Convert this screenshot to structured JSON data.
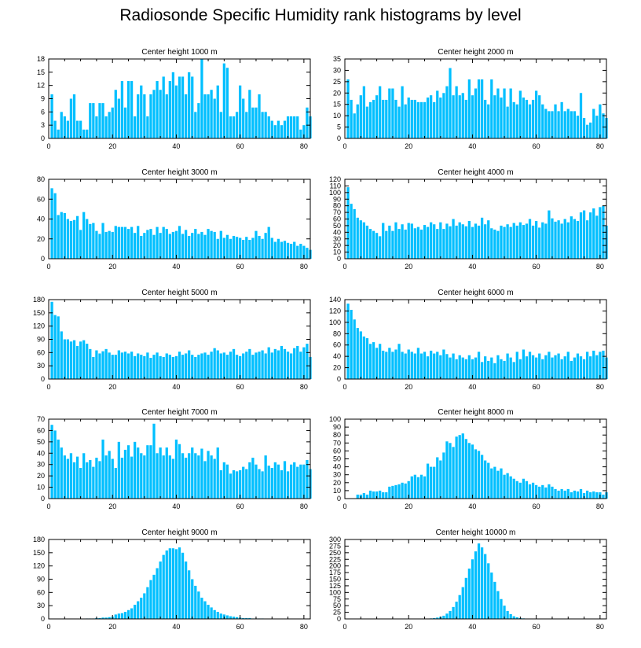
{
  "title": "Radiosonde Specific Humidity rank histograms by level",
  "bar_color": "#00BFFF",
  "chart_data": [
    {
      "type": "bar",
      "title": "Center height 1000 m",
      "ylim": [
        0,
        18
      ],
      "yticks": [
        0,
        3,
        6,
        9,
        12,
        15,
        18
      ],
      "xlim": [
        0,
        82
      ],
      "xticks": [
        0,
        20,
        40,
        60,
        80
      ],
      "x_start": 1,
      "values": [
        10,
        4,
        2,
        6,
        5,
        4,
        9,
        10,
        4,
        4,
        2,
        2,
        8,
        8,
        5,
        8,
        8,
        5,
        6,
        7,
        11,
        9,
        13,
        7,
        13,
        13,
        5,
        10,
        12,
        10,
        5,
        10,
        11,
        13,
        11,
        14,
        10,
        13,
        15,
        12,
        14,
        14,
        10,
        15,
        14,
        6,
        8,
        18,
        10,
        10,
        11,
        9,
        12,
        6,
        17,
        16,
        5,
        5,
        6,
        12,
        9,
        6,
        11,
        7,
        7,
        10,
        6,
        6,
        5,
        4,
        3,
        4,
        3,
        4,
        5,
        5,
        5,
        5,
        2,
        3,
        7,
        5
      ]
    },
    {
      "type": "bar",
      "title": "Center height 2000 m",
      "ylim": [
        0,
        35
      ],
      "yticks": [
        0,
        5,
        10,
        15,
        20,
        25,
        30,
        35
      ],
      "xlim": [
        0,
        82
      ],
      "xticks": [
        0,
        20,
        40,
        60,
        80
      ],
      "x_start": 1,
      "values": [
        26,
        17,
        11,
        15,
        19,
        23,
        14,
        16,
        17,
        19,
        23,
        17,
        17,
        22,
        22,
        17,
        14,
        23,
        15,
        18,
        17,
        17,
        16,
        16,
        16,
        18,
        19,
        16,
        21,
        18,
        20,
        23,
        31,
        19,
        23,
        19,
        20,
        17,
        26,
        19,
        22,
        26,
        26,
        17,
        15,
        26,
        19,
        22,
        18,
        22,
        14,
        22,
        16,
        15,
        21,
        18,
        17,
        15,
        17,
        21,
        19,
        15,
        13,
        12,
        12,
        15,
        12,
        16,
        12,
        13,
        12,
        12,
        10,
        20,
        9,
        6,
        7,
        13,
        10,
        15,
        11,
        9
      ]
    },
    {
      "type": "bar",
      "title": "Center height 3000 m",
      "ylim": [
        0,
        80
      ],
      "yticks": [
        0,
        20,
        40,
        60,
        80
      ],
      "xlim": [
        0,
        82
      ],
      "xticks": [
        0,
        20,
        40,
        60,
        80
      ],
      "x_start": 1,
      "values": [
        71,
        66,
        44,
        47,
        46,
        40,
        38,
        39,
        43,
        29,
        47,
        40,
        35,
        36,
        28,
        25,
        36,
        27,
        28,
        27,
        33,
        32,
        32,
        32,
        30,
        32,
        26,
        33,
        23,
        26,
        29,
        30,
        24,
        32,
        26,
        32,
        30,
        25,
        27,
        28,
        33,
        25,
        29,
        23,
        26,
        30,
        25,
        27,
        24,
        30,
        28,
        27,
        20,
        28,
        21,
        24,
        20,
        23,
        22,
        21,
        19,
        22,
        19,
        21,
        28,
        23,
        20,
        26,
        32,
        21,
        17,
        20,
        17,
        18,
        16,
        15,
        17,
        13,
        15,
        13,
        11,
        9
      ]
    },
    {
      "type": "bar",
      "title": "Center height 4000 m",
      "ylim": [
        0,
        120
      ],
      "yticks": [
        0,
        10,
        20,
        30,
        40,
        50,
        60,
        70,
        80,
        90,
        100,
        110,
        120
      ],
      "xlim": [
        0,
        82
      ],
      "xticks": [
        0,
        20,
        40,
        60,
        80
      ],
      "x_start": 1,
      "values": [
        108,
        83,
        75,
        62,
        58,
        55,
        50,
        45,
        42,
        39,
        34,
        54,
        42,
        50,
        42,
        55,
        45,
        52,
        44,
        54,
        53,
        46,
        48,
        44,
        51,
        48,
        55,
        52,
        45,
        55,
        45,
        53,
        49,
        60,
        50,
        55,
        52,
        49,
        57,
        48,
        53,
        50,
        62,
        52,
        58,
        46,
        44,
        42,
        50,
        48,
        52,
        48,
        54,
        50,
        55,
        51,
        53,
        60,
        50,
        57,
        47,
        55,
        53,
        73,
        61,
        56,
        58,
        53,
        60,
        55,
        64,
        60,
        57,
        70,
        73,
        58,
        70,
        76,
        65,
        78,
        80,
        50
      ]
    },
    {
      "type": "bar",
      "title": "Center height 5000 m",
      "ylim": [
        0,
        180
      ],
      "yticks": [
        0,
        30,
        60,
        90,
        120,
        150,
        180
      ],
      "xlim": [
        0,
        82
      ],
      "xticks": [
        0,
        20,
        40,
        60,
        80
      ],
      "x_start": 1,
      "values": [
        175,
        145,
        142,
        108,
        90,
        90,
        85,
        88,
        75,
        85,
        88,
        80,
        68,
        50,
        65,
        58,
        63,
        68,
        60,
        55,
        55,
        65,
        60,
        62,
        58,
        62,
        52,
        58,
        55,
        52,
        60,
        48,
        55,
        60,
        52,
        50,
        58,
        55,
        50,
        52,
        62,
        55,
        58,
        65,
        55,
        50,
        55,
        58,
        60,
        55,
        62,
        70,
        65,
        58,
        60,
        55,
        62,
        68,
        55,
        52,
        58,
        62,
        68,
        55,
        60,
        62,
        65,
        58,
        72,
        60,
        68,
        65,
        75,
        68,
        62,
        58,
        70,
        75,
        62,
        72,
        80,
        50
      ]
    },
    {
      "type": "bar",
      "title": "Center height 6000 m",
      "ylim": [
        0,
        140
      ],
      "yticks": [
        0,
        20,
        40,
        60,
        80,
        100,
        120,
        140
      ],
      "xlim": [
        0,
        82
      ],
      "xticks": [
        0,
        20,
        40,
        60,
        80
      ],
      "x_start": 1,
      "values": [
        133,
        122,
        105,
        90,
        84,
        75,
        72,
        62,
        65,
        55,
        62,
        50,
        48,
        55,
        48,
        52,
        62,
        48,
        45,
        52,
        48,
        45,
        55,
        45,
        48,
        40,
        50,
        45,
        48,
        42,
        52,
        44,
        38,
        45,
        35,
        42,
        38,
        35,
        42,
        35,
        38,
        48,
        30,
        40,
        32,
        38,
        28,
        42,
        35,
        32,
        45,
        38,
        30,
        48,
        35,
        52,
        40,
        48,
        42,
        38,
        45,
        35,
        42,
        48,
        38,
        42,
        45,
        35,
        40,
        48,
        32,
        38,
        45,
        40,
        35,
        48,
        40,
        50,
        42,
        48,
        50,
        38
      ]
    },
    {
      "type": "bar",
      "title": "Center height 7000 m",
      "ylim": [
        0,
        70
      ],
      "yticks": [
        0,
        10,
        20,
        30,
        40,
        50,
        60,
        70
      ],
      "xlim": [
        0,
        82
      ],
      "xticks": [
        0,
        20,
        40,
        60,
        80
      ],
      "x_start": 1,
      "values": [
        65,
        60,
        52,
        45,
        38,
        35,
        40,
        32,
        37,
        27,
        40,
        32,
        34,
        28,
        36,
        33,
        52,
        38,
        42,
        35,
        27,
        50,
        36,
        43,
        47,
        37,
        50,
        45,
        40,
        38,
        47,
        47,
        66,
        40,
        45,
        38,
        45,
        38,
        35,
        52,
        48,
        40,
        36,
        40,
        45,
        40,
        38,
        44,
        33,
        42,
        38,
        35,
        45,
        25,
        32,
        30,
        22,
        25,
        24,
        25,
        28,
        26,
        32,
        36,
        30,
        26,
        24,
        38,
        29,
        27,
        32,
        30,
        25,
        33,
        24,
        30,
        32,
        28,
        30,
        30,
        34,
        26
      ]
    },
    {
      "type": "bar",
      "title": "Center height 8000 m",
      "ylim": [
        0,
        100
      ],
      "yticks": [
        0,
        10,
        20,
        30,
        40,
        50,
        60,
        70,
        80,
        90,
        100
      ],
      "xlim": [
        0,
        82
      ],
      "xticks": [
        0,
        20,
        40,
        60,
        80
      ],
      "x_start": 1,
      "values": [
        0,
        0,
        0,
        5,
        5,
        7,
        5,
        10,
        9,
        9,
        10,
        8,
        8,
        15,
        16,
        17,
        18,
        20,
        19,
        22,
        28,
        30,
        27,
        30,
        28,
        44,
        40,
        40,
        52,
        48,
        58,
        72,
        70,
        65,
        78,
        80,
        82,
        75,
        70,
        68,
        62,
        60,
        55,
        48,
        45,
        38,
        40,
        35,
        38,
        30,
        32,
        28,
        25,
        22,
        20,
        25,
        22,
        18,
        20,
        17,
        15,
        17,
        14,
        18,
        15,
        12,
        10,
        12,
        10,
        12,
        8,
        10,
        9,
        12,
        7,
        10,
        8,
        9,
        8,
        8,
        5,
        8
      ]
    },
    {
      "type": "bar",
      "title": "Center height 9000 m",
      "ylim": [
        0,
        180
      ],
      "yticks": [
        0,
        30,
        60,
        90,
        120,
        150,
        180
      ],
      "xlim": [
        0,
        82
      ],
      "xticks": [
        0,
        20,
        40,
        60,
        80
      ],
      "x_start": 1,
      "values": [
        0,
        0,
        0,
        0,
        0,
        0,
        0,
        0,
        0,
        0,
        0,
        1,
        1,
        1,
        2,
        2,
        3,
        3,
        4,
        5,
        10,
        12,
        13,
        16,
        20,
        24,
        32,
        40,
        48,
        58,
        72,
        88,
        100,
        115,
        130,
        145,
        155,
        160,
        160,
        158,
        162,
        150,
        130,
        110,
        90,
        75,
        62,
        48,
        40,
        32,
        26,
        20,
        16,
        12,
        10,
        8,
        6,
        5,
        4,
        3,
        2,
        2,
        2,
        1,
        1,
        1,
        1,
        0,
        0,
        0,
        0,
        0,
        0,
        0,
        0,
        0,
        0,
        0,
        0,
        0,
        0,
        0
      ]
    },
    {
      "type": "bar",
      "title": "Center height 10000 m",
      "ylim": [
        0,
        300
      ],
      "yticks": [
        0,
        25,
        50,
        75,
        100,
        125,
        150,
        175,
        200,
        225,
        250,
        275,
        300
      ],
      "xlim": [
        0,
        82
      ],
      "xticks": [
        0,
        20,
        40,
        60,
        80
      ],
      "x_start": 1,
      "values": [
        0,
        0,
        0,
        0,
        0,
        0,
        0,
        0,
        0,
        0,
        0,
        0,
        0,
        0,
        0,
        0,
        0,
        0,
        0,
        0,
        0,
        0,
        0,
        0,
        0,
        1,
        2,
        3,
        5,
        8,
        12,
        20,
        30,
        45,
        65,
        90,
        120,
        155,
        190,
        225,
        255,
        285,
        270,
        245,
        210,
        175,
        140,
        105,
        75,
        50,
        30,
        18,
        10,
        6,
        3,
        2,
        1,
        1,
        0,
        0,
        0,
        0,
        0,
        0,
        0,
        0,
        0,
        0,
        0,
        0,
        0,
        0,
        0,
        0,
        0,
        0,
        0,
        0,
        0,
        0,
        0,
        0
      ]
    }
  ]
}
